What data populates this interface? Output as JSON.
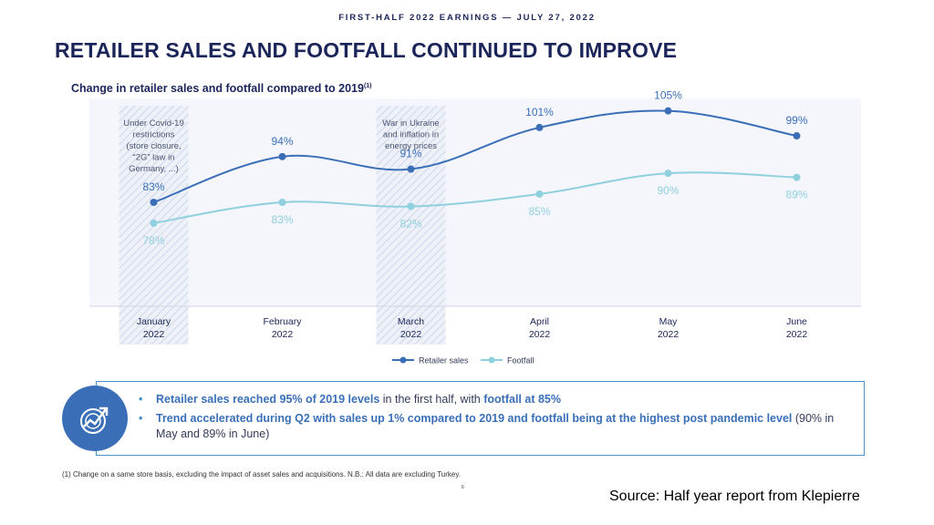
{
  "header": {
    "kicker": "FIRST-HALF 2022 EARNINGS — JULY 27, 2022",
    "title": "RETAILER SALES AND FOOTFALL CONTINUED TO IMPROVE",
    "subtitle": "Change in retailer sales and footfall compared to 2019",
    "subtitle_note": "(1)"
  },
  "chart_data": {
    "type": "line",
    "title": "Change in retailer sales and footfall compared to 2019(1)",
    "categories": [
      [
        "January",
        "2022"
      ],
      [
        "February",
        "2022"
      ],
      [
        "March",
        "2022"
      ],
      [
        "April",
        "2022"
      ],
      [
        "May",
        "2022"
      ],
      [
        "June",
        "2022"
      ]
    ],
    "series": [
      {
        "name": "Retailer sales",
        "color": "#3a6fb8",
        "values": [
          83,
          94,
          91,
          101,
          105,
          99
        ],
        "labels": [
          "83%",
          "94%",
          "91%",
          "101%",
          "105%",
          "99%"
        ]
      },
      {
        "name": "Footfall",
        "color": "#8fd0de",
        "values": [
          78,
          83,
          82,
          85,
          90,
          89
        ],
        "labels": [
          "78%",
          "83%",
          "82%",
          "85%",
          "90%",
          "89%"
        ]
      }
    ],
    "ylim": [
      58,
      108
    ],
    "grid": false,
    "legend": "bottom-center",
    "annotations": [
      {
        "category_index": 0,
        "lines": [
          "Under Covid-19",
          "restrictions",
          "(store closure,",
          "“2G” law in",
          "Germany, ...)"
        ]
      },
      {
        "category_index": 2,
        "lines": [
          "War in Ukraine",
          "and inflation in",
          "energy prices"
        ]
      }
    ]
  },
  "callout": {
    "icon": "growth-arrow-chart-icon",
    "bullet_glyph": "•",
    "bullets": [
      [
        {
          "text": "Retailer sales reached 95% of 2019 levels",
          "strong": true
        },
        {
          "text": " in the first half, with ",
          "strong": false
        },
        {
          "text": "footfall at 85%",
          "strong": true
        }
      ],
      [
        {
          "text": "Trend accelerated during Q2 with sales up 1% compared to 2019 and footfall being at the highest post pandemic level",
          "strong": true
        },
        {
          "text": " (90% in May and 89% in June)",
          "strong": false
        }
      ]
    ]
  },
  "footer": {
    "footnote": "(1) Change on a same store basis, excluding the impact of asset sales and acquisitions. N.B.: All data are excluding Turkey.",
    "page_number": "6",
    "source": "Source: Half year report from Klepierre"
  },
  "colors": {
    "navy": "#1b2559",
    "sales": "#3a6fb8",
    "footfall": "#8fd0de",
    "panel": "#f4f6fb"
  }
}
